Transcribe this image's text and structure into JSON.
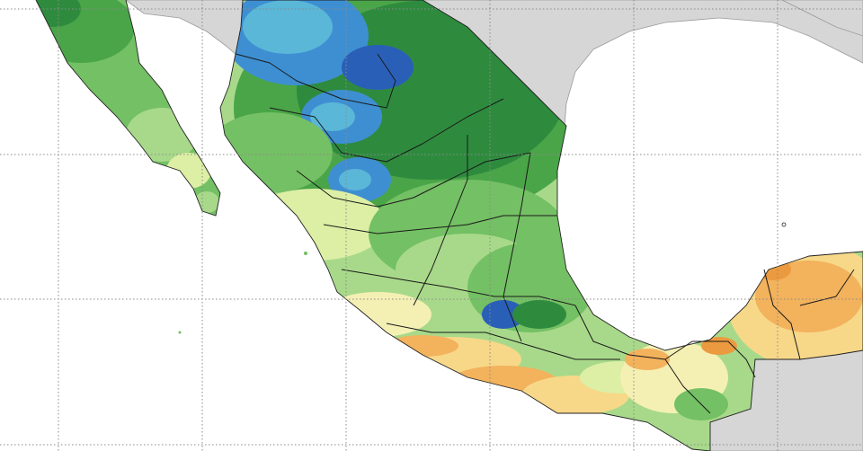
{
  "map": {
    "region": "Mexico",
    "type": "precipitation anomaly / percentage map",
    "colors": {
      "ocean": "#ffffff",
      "neighbor_land": "#d6d6d6",
      "dark_blue": "#2a5fb8",
      "blue": "#3e8fd2",
      "light_blue": "#5ab7d8",
      "dark_green": "#2e8b3e",
      "green": "#4aa548",
      "mid_green": "#74c064",
      "light_green": "#a8d98a",
      "yellow_green": "#dcefa4",
      "pale_yellow": "#f4f0b4",
      "yellow": "#f7d889",
      "orange": "#f3b25c",
      "dark_orange": "#ec9a3f",
      "borders": "#1a1a1a"
    }
  }
}
